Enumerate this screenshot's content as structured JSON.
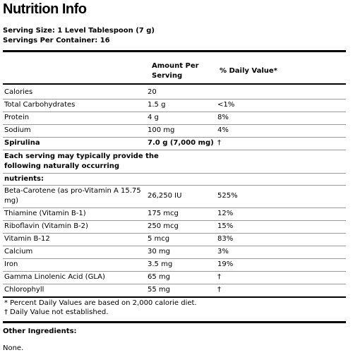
{
  "title": "Nutrition Info",
  "serving_size": "Serving Size: 1 Level Tablespoon (7 g)",
  "servings_per_container": "Servings Per Container: 16",
  "table": {
    "col_amount_line1": "Amount Per",
    "col_amount_line2": "Serving",
    "col_dv": "% Daily Value*",
    "rows": [
      {
        "name": "Calories",
        "amount": "20",
        "dv": ""
      },
      {
        "name": "Total Carbohydrates",
        "amount": "1.5 g",
        "dv": "<1%"
      },
      {
        "name": "Protein",
        "amount": "4 g",
        "dv": "8%"
      },
      {
        "name": "Sodium",
        "amount": "100 mg",
        "dv": "4%"
      },
      {
        "name": "Spirulina",
        "amount": "7.0 g (7,000 mg)",
        "dv": "†"
      }
    ],
    "note_line1": "Each serving may typically provide the",
    "note_line2": "following naturally occurring",
    "note_line3": "nutrients:",
    "nutrients": [
      {
        "name_line1": "Beta-Carotene (as pro-Vitamin A 15.75",
        "name_line2": "mg)",
        "amount": "26,250 IU",
        "dv": "525%"
      },
      {
        "name": "Thiamine (Vitamin B-1)",
        "amount": "175 mcg",
        "dv": "12%"
      },
      {
        "name": "Riboflavin (Vitamin B-2)",
        "amount": "250 mcg",
        "dv": "15%"
      },
      {
        "name": "Vitamin B-12",
        "amount": "5 mcg",
        "dv": "83%"
      },
      {
        "name": "Calcium",
        "amount": "30 mg",
        "dv": "3%"
      },
      {
        "name": "Iron",
        "amount": "3.5 mg",
        "dv": "19%"
      },
      {
        "name": "Gamma Linolenic Acid (GLA)",
        "amount": "65 mg",
        "dv": "†"
      },
      {
        "name": "Chlorophyll",
        "amount": "55 mg",
        "dv": "†"
      }
    ],
    "footnote1": "* Percent Daily Values are based on 2,000 calorie diet.",
    "footnote2": "† Daily Value not established."
  },
  "other_ingredients_label": "Other Ingredients:",
  "other_ingredients_value": "None."
}
